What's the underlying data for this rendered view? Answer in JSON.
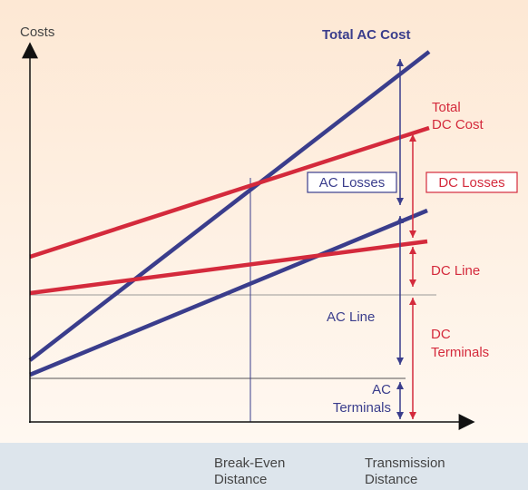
{
  "y_axis_label": "Costs",
  "total_ac_cost": "Total AC Cost",
  "total_dc_cost": [
    "Total",
    "DC Cost"
  ],
  "ac_losses": "AC Losses",
  "dc_losses": "DC Losses",
  "dc_line": "DC Line",
  "ac_line": "AC Line",
  "dc_terminals": [
    "DC",
    "Terminals"
  ],
  "ac_terminals": [
    "AC",
    "Terminals"
  ],
  "break_even_distance": [
    "Break-Even",
    "Distance"
  ],
  "transmission_distance": [
    "Transmission",
    "Distance"
  ]
}
